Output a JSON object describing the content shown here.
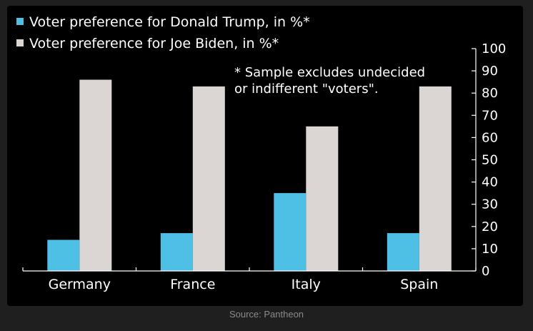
{
  "chart_data": {
    "type": "bar",
    "categories": [
      "Germany",
      "France",
      "Italy",
      "Spain"
    ],
    "series": [
      {
        "name": "Voter preference for Donald Trump, in %*",
        "values": [
          14,
          17,
          35,
          17
        ],
        "color": "#4ec0e6"
      },
      {
        "name": "Voter preference for Joe Biden, in %*",
        "values": [
          86,
          83,
          65,
          83
        ],
        "color": "#dbd6d3"
      }
    ],
    "ylim": [
      0,
      100
    ],
    "yticks": [
      "0",
      "10",
      "20",
      "30",
      "40",
      "50",
      "60",
      "70",
      "80",
      "90",
      "100"
    ],
    "y_axis_position": "right",
    "legend_position": "top-left",
    "annotation": [
      "* Sample excludes undecided",
      "or indifferent \"voters\"."
    ],
    "grid": false
  },
  "source": "Source: Pantheon"
}
